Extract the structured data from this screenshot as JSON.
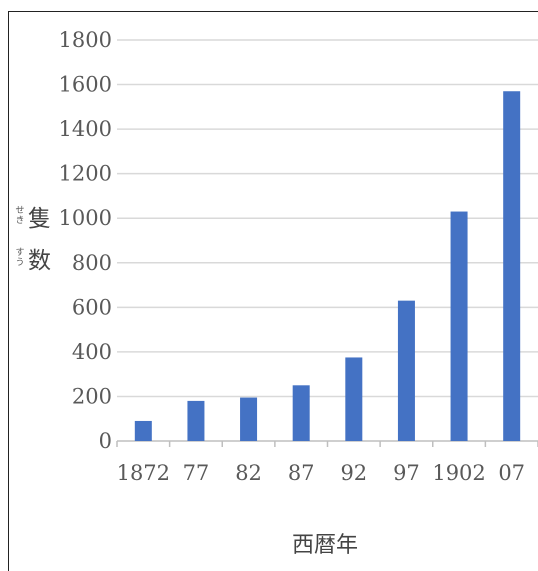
{
  "chart_data": {
    "type": "bar",
    "categories": [
      "1872",
      "77",
      "82",
      "87",
      "92",
      "97",
      "1902",
      "07"
    ],
    "values": [
      90,
      180,
      195,
      250,
      375,
      630,
      1030,
      1570
    ],
    "ylim": [
      0,
      1800
    ],
    "yticks": [
      "0",
      "200",
      "400",
      "600",
      "800",
      "1000",
      "1200",
      "1400",
      "1600",
      "1800"
    ],
    "ytick_values": [
      0,
      200,
      400,
      600,
      800,
      1000,
      1200,
      1400,
      1600,
      1800
    ],
    "ylabel": [
      {
        "kanji": "隻",
        "ruby": "せき"
      },
      {
        "kanji": "数",
        "ruby": "すう"
      }
    ],
    "xlabel": "西暦年",
    "grid": true,
    "bar_color": "#4472c4",
    "grid_color": "#d9d9d9",
    "axis_color": "#bfbfbf"
  }
}
